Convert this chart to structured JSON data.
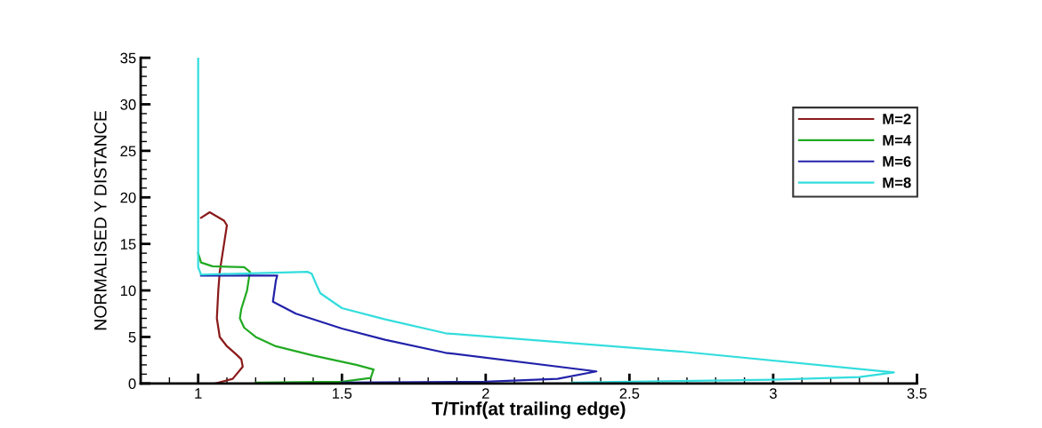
{
  "chart_data": {
    "type": "line",
    "xlabel": "T/Tinf(at trailing edge)",
    "ylabel": "NORMALISED Y DISTANCE",
    "xlim": [
      0.8,
      3.5
    ],
    "xticks": [
      1,
      1.5,
      2,
      2.5,
      3,
      3.5
    ],
    "ylim": [
      0,
      35
    ],
    "yticks": [
      0,
      5,
      10,
      15,
      20,
      25,
      30,
      35
    ],
    "grid": false,
    "legend": "top right",
    "marker": "none",
    "line_style": "solid",
    "series": [
      {
        "name": "M=2",
        "color": "#8b1a1a",
        "x": [
          1.06,
          1.12,
          1.155,
          1.15,
          1.13,
          1.1,
          1.075,
          1.065,
          1.07,
          1.075,
          1.09,
          1.1,
          1.09,
          1.04,
          1.01
        ],
        "values": [
          0,
          0.5,
          1.8,
          2.6,
          3.2,
          4.0,
          5.0,
          7.0,
          10.0,
          12.0,
          15.0,
          17.0,
          17.5,
          18.4,
          17.8
        ]
      },
      {
        "name": "M=4",
        "color": "#22aa22",
        "x": [
          1.2,
          1.5,
          1.6,
          1.61,
          1.55,
          1.4,
          1.27,
          1.2,
          1.16,
          1.145,
          1.15,
          1.17,
          1.175,
          1.18,
          1.16,
          1.05,
          1.01,
          1.0
        ],
        "values": [
          0.1,
          0.2,
          0.6,
          1.5,
          2.0,
          3.0,
          4.0,
          5.0,
          6.0,
          7.0,
          8.0,
          10.0,
          11.0,
          12.0,
          12.5,
          12.6,
          13.0,
          14.0
        ]
      },
      {
        "name": "M=6",
        "color": "#2222aa",
        "x": [
          1.5,
          2.0,
          2.25,
          2.385,
          1.86,
          1.65,
          1.5,
          1.34,
          1.26,
          1.27,
          1.275,
          1.01
        ],
        "values": [
          0.1,
          0.2,
          0.5,
          1.3,
          3.3,
          4.7,
          5.9,
          7.5,
          8.8,
          11.0,
          11.6,
          11.6
        ]
      },
      {
        "name": "M=8",
        "color": "#33dddd",
        "x": [
          2.3,
          2.5,
          3.0,
          3.3,
          3.42,
          2.69,
          1.86,
          1.65,
          1.5,
          1.425,
          1.41,
          1.395,
          1.38,
          1.01,
          1.0,
          1.0
        ],
        "values": [
          0.1,
          0.2,
          0.4,
          0.7,
          1.2,
          3.4,
          5.4,
          6.9,
          8.1,
          9.7,
          10.7,
          11.8,
          12.0,
          11.7,
          12.5,
          35
        ]
      }
    ]
  }
}
